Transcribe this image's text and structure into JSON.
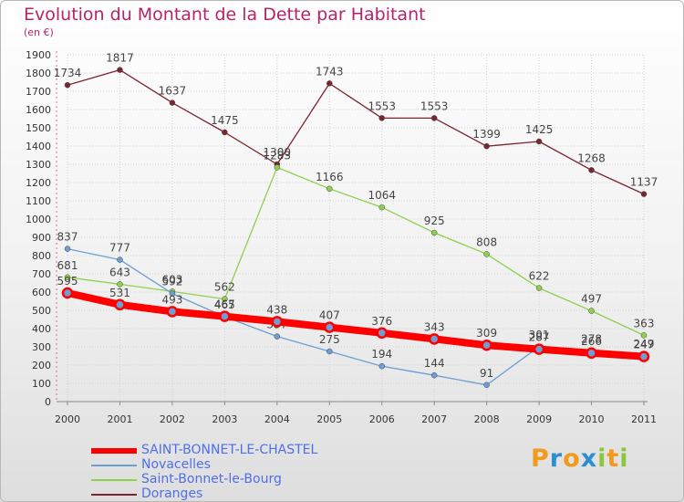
{
  "chart_data": {
    "type": "line",
    "title": "Evolution du Montant de la Dette par Habitant",
    "unit_label": "(en €)",
    "ylim": [
      0,
      1900
    ],
    "yticks": [
      0,
      100,
      200,
      300,
      400,
      500,
      600,
      700,
      800,
      900,
      1000,
      1100,
      1200,
      1300,
      1400,
      1500,
      1600,
      1700,
      1800,
      1900
    ],
    "x": [
      "2000",
      "2001",
      "2002",
      "2003",
      "2004",
      "2005",
      "2006",
      "2007",
      "2008",
      "2009",
      "2010",
      "2011"
    ],
    "series": [
      {
        "name": "Doranges",
        "color": "#7a2530",
        "values": [
          1734,
          1817,
          1637,
          1475,
          1300,
          1743,
          1553,
          1553,
          1399,
          1425,
          1268,
          1137
        ]
      },
      {
        "name": "Saint-Bonnet-le-Bourg",
        "color": "#8fd14f",
        "values": [
          681,
          643,
          603,
          562,
          1283,
          1166,
          1064,
          925,
          808,
          622,
          497,
          363
        ]
      },
      {
        "name": "Novacelles",
        "color": "#6d9fd4",
        "values": [
          837,
          777,
          592,
          465,
          357,
          275,
          194,
          144,
          91,
          301,
          278,
          249
        ]
      },
      {
        "name": "SAINT-BONNET-LE-CHASTEL",
        "color": "#ff0000",
        "values": [
          595,
          531,
          493,
          467,
          438,
          407,
          376,
          343,
          309,
          287,
          266,
          247
        ]
      }
    ]
  },
  "legend": {
    "items": [
      {
        "label": "SAINT-BONNET-LE-CHASTEL",
        "color": "#ff0000",
        "weight": "thick"
      },
      {
        "label": "Novacelles",
        "color": "#6d9fd4",
        "weight": "thin"
      },
      {
        "label": "Saint-Bonnet-le-Bourg",
        "color": "#8fd14f",
        "weight": "thin"
      },
      {
        "label": "Doranges",
        "color": "#7a2530",
        "weight": "thin"
      }
    ]
  },
  "logo": {
    "letters": [
      "P",
      "r",
      "o",
      "x",
      "i",
      "t",
      "i"
    ],
    "colors": [
      "#f29a1e",
      "#2b8fd6",
      "#f29a1e",
      "#2b8fd6",
      "#8cc63f",
      "#f29a1e",
      "#8cc63f"
    ]
  }
}
